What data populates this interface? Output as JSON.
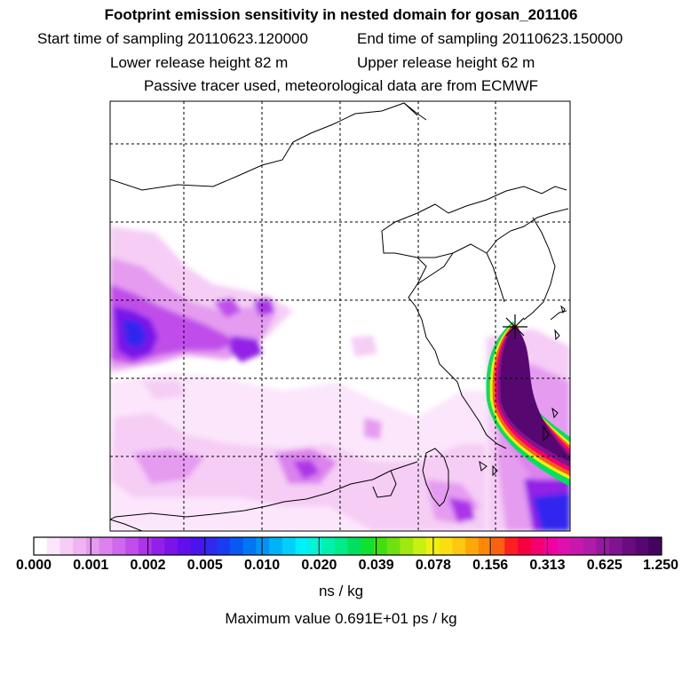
{
  "header": {
    "title": "Footprint emission sensitivity in nested domain for gosan_201106",
    "start_sampling": "Start time of sampling 20110623.120000",
    "end_sampling": "End time of sampling 20110623.150000",
    "lower_release": "Lower release height   82 m",
    "upper_release": "Upper release height   62 m",
    "tracer_note": "Passive tracer used, meteorological data are from ECMWF"
  },
  "colorbar": {
    "tick_labels": [
      "0.000",
      "0.001",
      "0.002",
      "0.005",
      "0.010",
      "0.020",
      "0.039",
      "0.078",
      "0.156",
      "0.313",
      "0.625",
      "1.250"
    ],
    "colors": [
      "#ffffff",
      "#fbe6fb",
      "#f5cdf5",
      "#eeb4f3",
      "#e59bf0",
      "#db82ee",
      "#cf68ec",
      "#c04eea",
      "#ad34e8",
      "#9320e6",
      "#7a14e8",
      "#6010ea",
      "#4a14ec",
      "#3228ee",
      "#1a3cf0",
      "#0a58f2",
      "#0076f4",
      "#0094f6",
      "#00b2f8",
      "#00d0fa",
      "#00f0fa",
      "#00f4d8",
      "#00f0b0",
      "#00ec88",
      "#00e060",
      "#10e030",
      "#40e010",
      "#70e010",
      "#a0e810",
      "#c8f010",
      "#f0f010",
      "#f8e010",
      "#fcc810",
      "#fca808",
      "#fc8808",
      "#fc6010",
      "#fc2020",
      "#f80040",
      "#f40070",
      "#f000a0",
      "#e010b0",
      "#c818b0",
      "#b01ca8",
      "#9818a0",
      "#801490",
      "#6a0c80",
      "#560870",
      "#440460"
    ],
    "units": "ns / kg"
  },
  "max_value_text": "Maximum value  0.691E+01 ps / kg"
}
